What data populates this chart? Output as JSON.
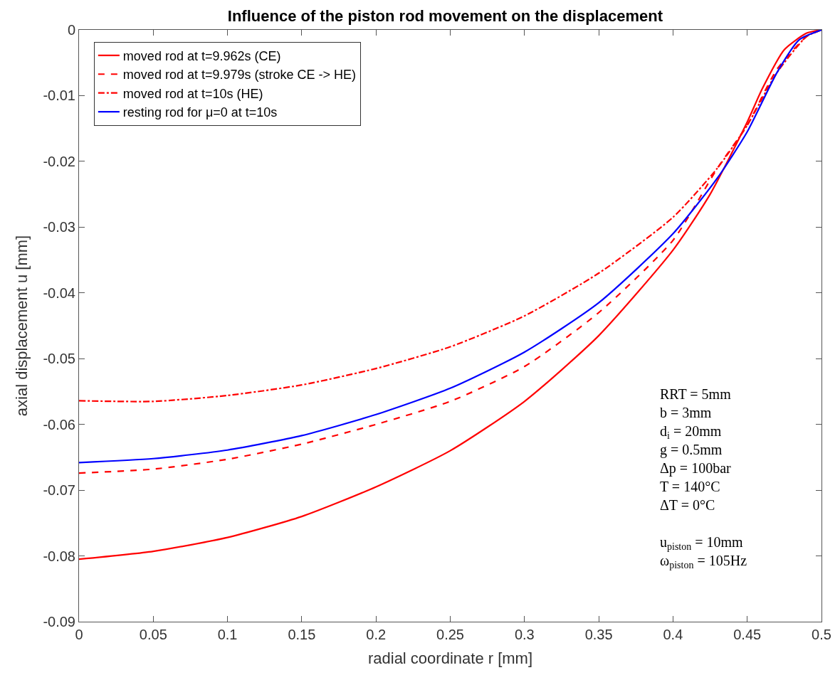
{
  "chart_data": {
    "type": "line",
    "title": "Influence of the piston rod movement on the displacement",
    "xlabel": "radial coordinate r [mm]",
    "ylabel": "axial displacement u [mm]",
    "xlim": [
      0,
      0.5
    ],
    "xticks": [
      0,
      0.05,
      0.1,
      0.15,
      0.2,
      0.25,
      0.3,
      0.35,
      0.4,
      0.45,
      0.5
    ],
    "ylim": [
      -0.09,
      0
    ],
    "yticks": [
      -0.09,
      -0.08,
      -0.07,
      -0.06,
      -0.05,
      -0.04,
      -0.03,
      -0.02,
      -0.01,
      0
    ],
    "legend": "top left",
    "marker": "none",
    "annotations": [
      "RRT = 5mm\nb = 3mm\nd$_{i}$ = 20mm\ng = 0.5mm\nΔp = 100bar\nT = 140°C\nΔT = 0°C\n\nu$_{piston}$ = 10mm\nω$_{piston}$ = 105Hz"
    ],
    "series": [
      {
        "name": "moved rod at t=9.962s (CE)",
        "color": "#ff0000",
        "line_style": "solid",
        "x": [
          0,
          0.05,
          0.1,
          0.15,
          0.2,
          0.25,
          0.3,
          0.35,
          0.4,
          0.425,
          0.45,
          0.46,
          0.475,
          0.49,
          0.5
        ],
        "values": [
          -0.0805,
          -0.0793,
          -0.0772,
          -0.074,
          -0.0695,
          -0.064,
          -0.0565,
          -0.0465,
          -0.0335,
          -0.025,
          -0.014,
          -0.009,
          -0.003,
          -0.0005,
          0
        ]
      },
      {
        "name": "moved rod at t=9.979s (stroke CE -> HE)",
        "color": "#ff0000",
        "line_style": "dashed",
        "x": [
          0,
          0.05,
          0.1,
          0.15,
          0.2,
          0.25,
          0.3,
          0.35,
          0.4,
          0.43,
          0.45,
          0.47,
          0.49,
          0.5
        ],
        "values": [
          -0.0674,
          -0.0668,
          -0.0653,
          -0.063,
          -0.06,
          -0.0565,
          -0.0512,
          -0.043,
          -0.032,
          -0.021,
          -0.0145,
          -0.006,
          -0.001,
          0
        ]
      },
      {
        "name": "moved rod at t=10s (HE)",
        "color": "#ff0000",
        "line_style": "dashdot",
        "x": [
          0,
          0.05,
          0.1,
          0.15,
          0.2,
          0.25,
          0.3,
          0.35,
          0.4,
          0.43,
          0.45,
          0.47,
          0.49,
          0.5
        ],
        "values": [
          -0.0564,
          -0.0565,
          -0.0556,
          -0.054,
          -0.0515,
          -0.0482,
          -0.0435,
          -0.037,
          -0.0285,
          -0.021,
          -0.0145,
          -0.0065,
          -0.001,
          0
        ]
      },
      {
        "name": "resting rod for μ=0 at t=10s",
        "color": "#0000ff",
        "line_style": "solid",
        "x": [
          0,
          0.05,
          0.1,
          0.15,
          0.2,
          0.25,
          0.3,
          0.35,
          0.4,
          0.43,
          0.45,
          0.47,
          0.485,
          0.5
        ],
        "values": [
          -0.0658,
          -0.0652,
          -0.0639,
          -0.0617,
          -0.0585,
          -0.0545,
          -0.049,
          -0.0415,
          -0.031,
          -0.0225,
          -0.0155,
          -0.0065,
          -0.0015,
          0
        ]
      }
    ]
  }
}
